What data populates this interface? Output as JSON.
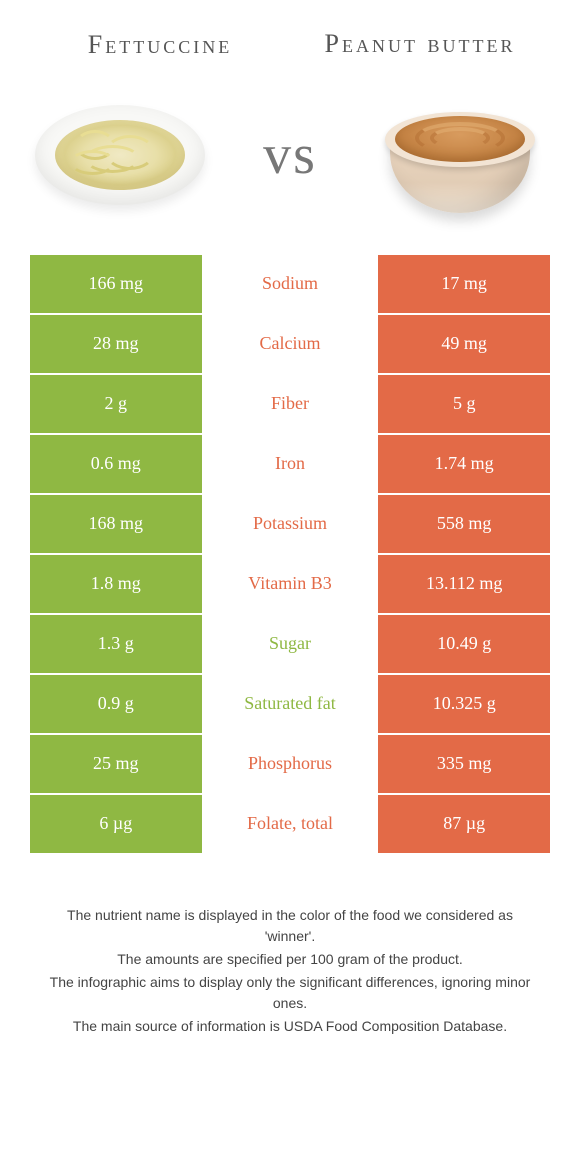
{
  "left_food": "Fettuccine",
  "right_food": "Peanut butter",
  "vs": "vs",
  "colors": {
    "left": "#8fb843",
    "right": "#e36a47",
    "row_text_white": "#ffffff"
  },
  "rows": [
    {
      "left": "166 mg",
      "nutrient": "Sodium",
      "right": "17 mg",
      "winner": "right"
    },
    {
      "left": "28 mg",
      "nutrient": "Calcium",
      "right": "49 mg",
      "winner": "right"
    },
    {
      "left": "2 g",
      "nutrient": "Fiber",
      "right": "5 g",
      "winner": "right"
    },
    {
      "left": "0.6 mg",
      "nutrient": "Iron",
      "right": "1.74 mg",
      "winner": "right"
    },
    {
      "left": "168 mg",
      "nutrient": "Potassium",
      "right": "558 mg",
      "winner": "right"
    },
    {
      "left": "1.8 mg",
      "nutrient": "Vitamin B3",
      "right": "13.112 mg",
      "winner": "right"
    },
    {
      "left": "1.3 g",
      "nutrient": "Sugar",
      "right": "10.49 g",
      "winner": "left"
    },
    {
      "left": "0.9 g",
      "nutrient": "Saturated fat",
      "right": "10.325 g",
      "winner": "left"
    },
    {
      "left": "25 mg",
      "nutrient": "Phosphorus",
      "right": "335 mg",
      "winner": "right"
    },
    {
      "left": "6 µg",
      "nutrient": "Folate, total",
      "right": "87 µg",
      "winner": "right"
    }
  ],
  "footer": [
    "The nutrient name is displayed in the color of the food we considered as 'winner'.",
    "The amounts are specified per 100 gram of the product.",
    "The infographic aims to display only the significant differences, ignoring minor ones.",
    "The main source of information is USDA Food Composition Database."
  ]
}
